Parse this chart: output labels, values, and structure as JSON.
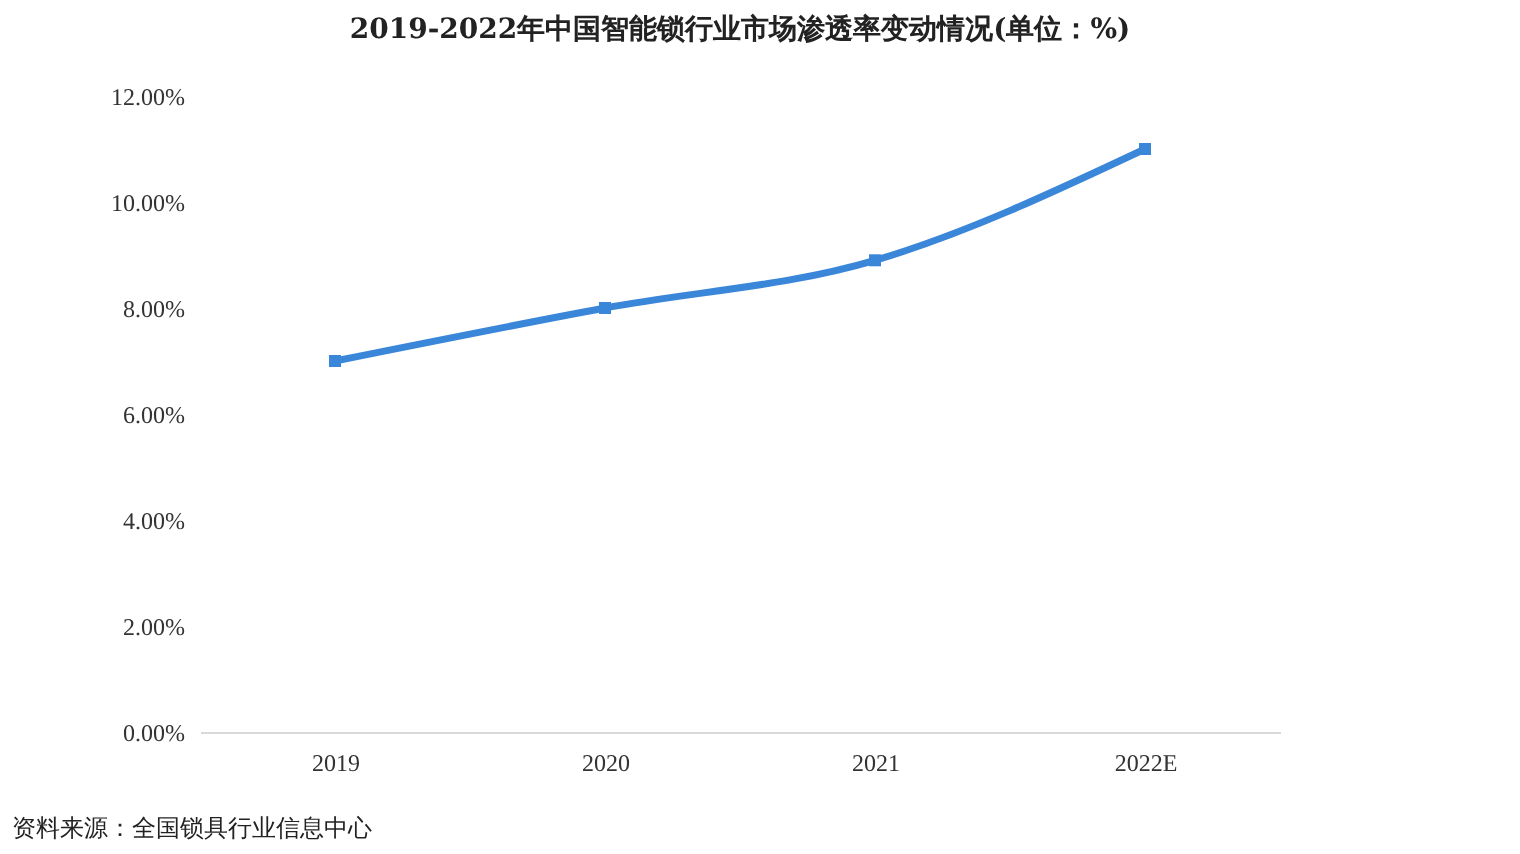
{
  "chart_data": {
    "type": "line",
    "title": "2019-2022年中国智能锁行业市场渗透率变动情况(单位：%)",
    "categories": [
      "2019",
      "2020",
      "2021",
      "2022E"
    ],
    "series": [
      {
        "color": "#3a86d8",
        "values": [
          7.0,
          8.0,
          8.9,
          11.0
        ]
      }
    ],
    "ylim": [
      0,
      12
    ],
    "yticks": [
      {
        "value": 0,
        "label": "0.00%"
      },
      {
        "value": 2,
        "label": "2.00%"
      },
      {
        "value": 4,
        "label": "4.00%"
      },
      {
        "value": 6,
        "label": "6.00%"
      },
      {
        "value": 8,
        "label": "8.00%"
      },
      {
        "value": 10,
        "label": "10.00%"
      },
      {
        "value": 12,
        "label": "12.00%"
      }
    ],
    "marker": "square",
    "grid": false,
    "legend": false,
    "annotations": [
      "资料来源：全国锁具行业信息中心"
    ]
  }
}
